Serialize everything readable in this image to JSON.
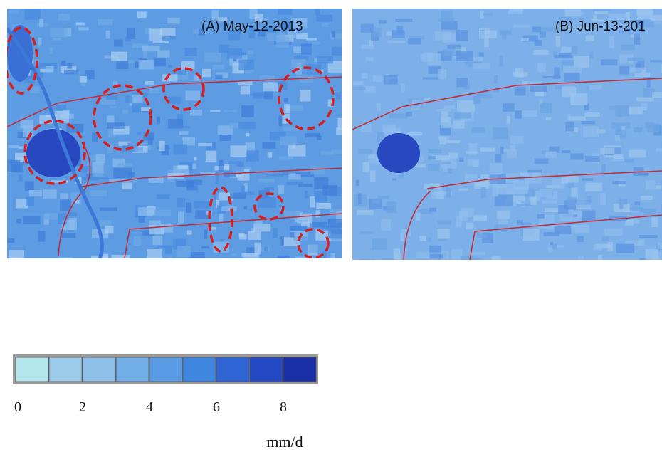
{
  "panels": [
    {
      "label": "(A) May-12-2013"
    },
    {
      "label": "(B) Jun-13-201"
    }
  ],
  "legend": {
    "colors": [
      "#b3e5ec",
      "#9ccbea",
      "#8ec0ea",
      "#72aee8",
      "#5a9be6",
      "#3f86e0",
      "#2f65d4",
      "#2449c4",
      "#1a2fa8"
    ],
    "ticks": [
      0,
      2,
      4,
      6,
      8
    ],
    "unit": "mm/d"
  }
}
